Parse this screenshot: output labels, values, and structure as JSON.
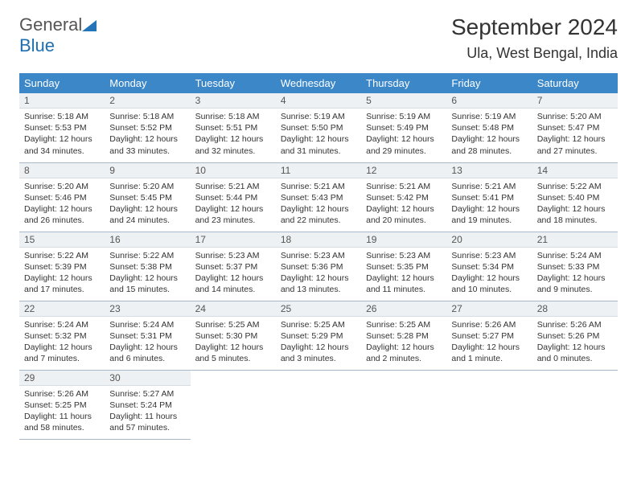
{
  "brand": {
    "text1": "General",
    "text2": "Blue"
  },
  "title": "September 2024",
  "location": "Ula, West Bengal, India",
  "weekdays": [
    "Sunday",
    "Monday",
    "Tuesday",
    "Wednesday",
    "Thursday",
    "Friday",
    "Saturday"
  ],
  "colors": {
    "header_bg": "#3b87c8",
    "header_fg": "#ffffff",
    "daynum_bg": "#eef1f3",
    "border": "#a8b8c8",
    "brand_gray": "#555555",
    "brand_blue": "#1f6fb0"
  },
  "days": [
    {
      "num": "1",
      "sunrise": "Sunrise: 5:18 AM",
      "sunset": "Sunset: 5:53 PM",
      "daylight1": "Daylight: 12 hours",
      "daylight2": "and 34 minutes."
    },
    {
      "num": "2",
      "sunrise": "Sunrise: 5:18 AM",
      "sunset": "Sunset: 5:52 PM",
      "daylight1": "Daylight: 12 hours",
      "daylight2": "and 33 minutes."
    },
    {
      "num": "3",
      "sunrise": "Sunrise: 5:18 AM",
      "sunset": "Sunset: 5:51 PM",
      "daylight1": "Daylight: 12 hours",
      "daylight2": "and 32 minutes."
    },
    {
      "num": "4",
      "sunrise": "Sunrise: 5:19 AM",
      "sunset": "Sunset: 5:50 PM",
      "daylight1": "Daylight: 12 hours",
      "daylight2": "and 31 minutes."
    },
    {
      "num": "5",
      "sunrise": "Sunrise: 5:19 AM",
      "sunset": "Sunset: 5:49 PM",
      "daylight1": "Daylight: 12 hours",
      "daylight2": "and 29 minutes."
    },
    {
      "num": "6",
      "sunrise": "Sunrise: 5:19 AM",
      "sunset": "Sunset: 5:48 PM",
      "daylight1": "Daylight: 12 hours",
      "daylight2": "and 28 minutes."
    },
    {
      "num": "7",
      "sunrise": "Sunrise: 5:20 AM",
      "sunset": "Sunset: 5:47 PM",
      "daylight1": "Daylight: 12 hours",
      "daylight2": "and 27 minutes."
    },
    {
      "num": "8",
      "sunrise": "Sunrise: 5:20 AM",
      "sunset": "Sunset: 5:46 PM",
      "daylight1": "Daylight: 12 hours",
      "daylight2": "and 26 minutes."
    },
    {
      "num": "9",
      "sunrise": "Sunrise: 5:20 AM",
      "sunset": "Sunset: 5:45 PM",
      "daylight1": "Daylight: 12 hours",
      "daylight2": "and 24 minutes."
    },
    {
      "num": "10",
      "sunrise": "Sunrise: 5:21 AM",
      "sunset": "Sunset: 5:44 PM",
      "daylight1": "Daylight: 12 hours",
      "daylight2": "and 23 minutes."
    },
    {
      "num": "11",
      "sunrise": "Sunrise: 5:21 AM",
      "sunset": "Sunset: 5:43 PM",
      "daylight1": "Daylight: 12 hours",
      "daylight2": "and 22 minutes."
    },
    {
      "num": "12",
      "sunrise": "Sunrise: 5:21 AM",
      "sunset": "Sunset: 5:42 PM",
      "daylight1": "Daylight: 12 hours",
      "daylight2": "and 20 minutes."
    },
    {
      "num": "13",
      "sunrise": "Sunrise: 5:21 AM",
      "sunset": "Sunset: 5:41 PM",
      "daylight1": "Daylight: 12 hours",
      "daylight2": "and 19 minutes."
    },
    {
      "num": "14",
      "sunrise": "Sunrise: 5:22 AM",
      "sunset": "Sunset: 5:40 PM",
      "daylight1": "Daylight: 12 hours",
      "daylight2": "and 18 minutes."
    },
    {
      "num": "15",
      "sunrise": "Sunrise: 5:22 AM",
      "sunset": "Sunset: 5:39 PM",
      "daylight1": "Daylight: 12 hours",
      "daylight2": "and 17 minutes."
    },
    {
      "num": "16",
      "sunrise": "Sunrise: 5:22 AM",
      "sunset": "Sunset: 5:38 PM",
      "daylight1": "Daylight: 12 hours",
      "daylight2": "and 15 minutes."
    },
    {
      "num": "17",
      "sunrise": "Sunrise: 5:23 AM",
      "sunset": "Sunset: 5:37 PM",
      "daylight1": "Daylight: 12 hours",
      "daylight2": "and 14 minutes."
    },
    {
      "num": "18",
      "sunrise": "Sunrise: 5:23 AM",
      "sunset": "Sunset: 5:36 PM",
      "daylight1": "Daylight: 12 hours",
      "daylight2": "and 13 minutes."
    },
    {
      "num": "19",
      "sunrise": "Sunrise: 5:23 AM",
      "sunset": "Sunset: 5:35 PM",
      "daylight1": "Daylight: 12 hours",
      "daylight2": "and 11 minutes."
    },
    {
      "num": "20",
      "sunrise": "Sunrise: 5:23 AM",
      "sunset": "Sunset: 5:34 PM",
      "daylight1": "Daylight: 12 hours",
      "daylight2": "and 10 minutes."
    },
    {
      "num": "21",
      "sunrise": "Sunrise: 5:24 AM",
      "sunset": "Sunset: 5:33 PM",
      "daylight1": "Daylight: 12 hours",
      "daylight2": "and 9 minutes."
    },
    {
      "num": "22",
      "sunrise": "Sunrise: 5:24 AM",
      "sunset": "Sunset: 5:32 PM",
      "daylight1": "Daylight: 12 hours",
      "daylight2": "and 7 minutes."
    },
    {
      "num": "23",
      "sunrise": "Sunrise: 5:24 AM",
      "sunset": "Sunset: 5:31 PM",
      "daylight1": "Daylight: 12 hours",
      "daylight2": "and 6 minutes."
    },
    {
      "num": "24",
      "sunrise": "Sunrise: 5:25 AM",
      "sunset": "Sunset: 5:30 PM",
      "daylight1": "Daylight: 12 hours",
      "daylight2": "and 5 minutes."
    },
    {
      "num": "25",
      "sunrise": "Sunrise: 5:25 AM",
      "sunset": "Sunset: 5:29 PM",
      "daylight1": "Daylight: 12 hours",
      "daylight2": "and 3 minutes."
    },
    {
      "num": "26",
      "sunrise": "Sunrise: 5:25 AM",
      "sunset": "Sunset: 5:28 PM",
      "daylight1": "Daylight: 12 hours",
      "daylight2": "and 2 minutes."
    },
    {
      "num": "27",
      "sunrise": "Sunrise: 5:26 AM",
      "sunset": "Sunset: 5:27 PM",
      "daylight1": "Daylight: 12 hours",
      "daylight2": "and 1 minute."
    },
    {
      "num": "28",
      "sunrise": "Sunrise: 5:26 AM",
      "sunset": "Sunset: 5:26 PM",
      "daylight1": "Daylight: 12 hours",
      "daylight2": "and 0 minutes."
    },
    {
      "num": "29",
      "sunrise": "Sunrise: 5:26 AM",
      "sunset": "Sunset: 5:25 PM",
      "daylight1": "Daylight: 11 hours",
      "daylight2": "and 58 minutes."
    },
    {
      "num": "30",
      "sunrise": "Sunrise: 5:27 AM",
      "sunset": "Sunset: 5:24 PM",
      "daylight1": "Daylight: 11 hours",
      "daylight2": "and 57 minutes."
    }
  ]
}
